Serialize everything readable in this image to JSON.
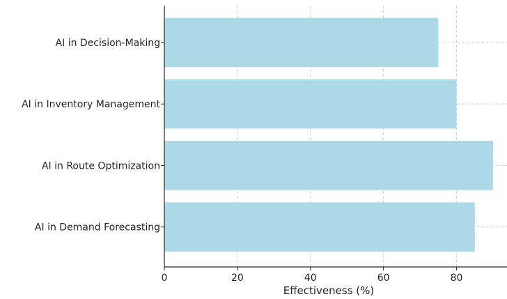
{
  "chart_data": {
    "type": "bar",
    "orientation": "horizontal",
    "categories": [
      "AI in Decision-Making",
      "AI in Inventory Management",
      "AI in Route Optimization",
      "AI in Demand Forecasting"
    ],
    "values": [
      75,
      80,
      90,
      85
    ],
    "title": "",
    "xlabel": "Effectiveness (%)",
    "ylabel": "",
    "xlim": [
      0,
      90
    ],
    "xticks": [
      0,
      20,
      40,
      60,
      80
    ],
    "grid": true,
    "legend": "none",
    "bar_color": "#add8e6",
    "axis_color": "#262626",
    "grid_color": "#cfcfcf"
  }
}
